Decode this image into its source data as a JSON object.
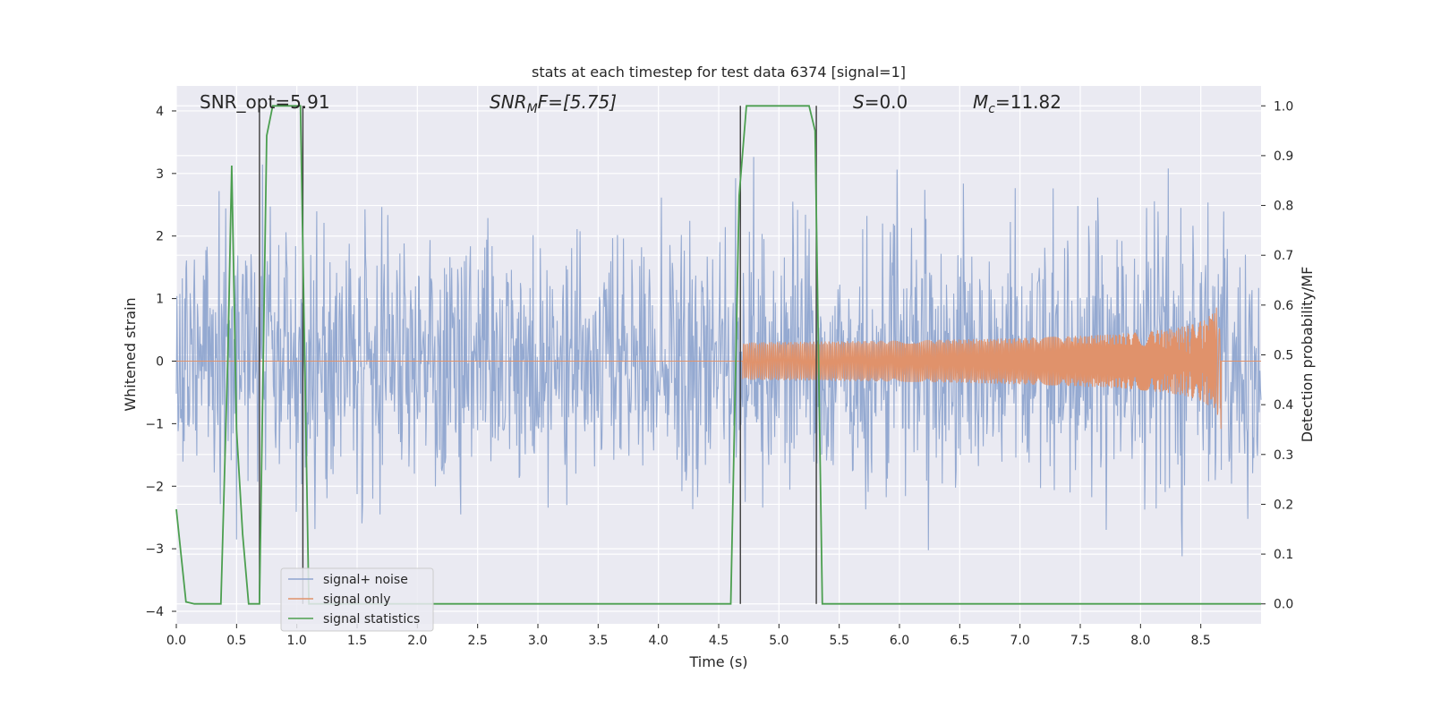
{
  "chart_data": {
    "type": "line",
    "title": "stats at each timestep for test data 6374 [signal=1]",
    "xlabel": "Time (s)",
    "ylabel": "Whitened strain",
    "y2label": "Detection probability/MF",
    "xlim": [
      0,
      9.0
    ],
    "ylim": [
      -4.2,
      4.4
    ],
    "y2lim": [
      -0.04,
      1.04
    ],
    "x_ticks": [
      "0.0",
      "0.5",
      "1.0",
      "1.5",
      "2.0",
      "2.5",
      "3.0",
      "3.5",
      "4.0",
      "4.5",
      "5.0",
      "5.5",
      "6.0",
      "6.5",
      "7.0",
      "7.5",
      "8.0",
      "8.5"
    ],
    "y_ticks": [
      "4",
      "3",
      "2",
      "1",
      "0",
      "−1",
      "−2",
      "−3",
      "−4"
    ],
    "y2_ticks": [
      "1.0",
      "0.9",
      "0.8",
      "0.7",
      "0.6",
      "0.5",
      "0.4",
      "0.3",
      "0.2",
      "0.1",
      "0.0"
    ],
    "grid": true,
    "legend_position": "lower-left",
    "annotations": {
      "snr_opt": "SNR_opt=5.91",
      "snr_mf_main": "SNR",
      "snr_mf_sub": "M",
      "snr_mf_rest": "F=[5.75]",
      "s_main": "S",
      "s_rest": "=0.0",
      "mc_main": "M",
      "mc_sub": "c",
      "mc_rest": "=11.82"
    },
    "series": [
      {
        "name": "signal+ noise",
        "color": "#8fa5cf",
        "description_values": "whitened noisy strain, roughly within [-3.7, 3.9]"
      },
      {
        "name": "signal only",
        "color": "#e0926b",
        "chirp_start": 4.7,
        "chirp_end": 8.67,
        "peak_amplitude": 1.15
      },
      {
        "name": "signal statistics",
        "color": "#4c9f50",
        "axis": "right",
        "points": [
          [
            0.0,
            0.19
          ],
          [
            0.08,
            0.004
          ],
          [
            0.15,
            0.0
          ],
          [
            0.37,
            0.0
          ],
          [
            0.43,
            0.52
          ],
          [
            0.46,
            0.88
          ],
          [
            0.5,
            0.35
          ],
          [
            0.55,
            0.14
          ],
          [
            0.6,
            0.0
          ],
          [
            0.69,
            0.0
          ],
          [
            0.75,
            0.94
          ],
          [
            0.8,
            1.0
          ],
          [
            1.03,
            1.0
          ],
          [
            1.1,
            0.0
          ],
          [
            4.6,
            0.0
          ],
          [
            4.67,
            0.82
          ],
          [
            4.73,
            1.0
          ],
          [
            5.25,
            1.0
          ],
          [
            5.3,
            0.95
          ],
          [
            5.36,
            0.0
          ],
          [
            9.0,
            0.0
          ]
        ]
      }
    ],
    "vertical_markers": [
      0.69,
      1.05,
      4.68,
      5.31
    ]
  }
}
